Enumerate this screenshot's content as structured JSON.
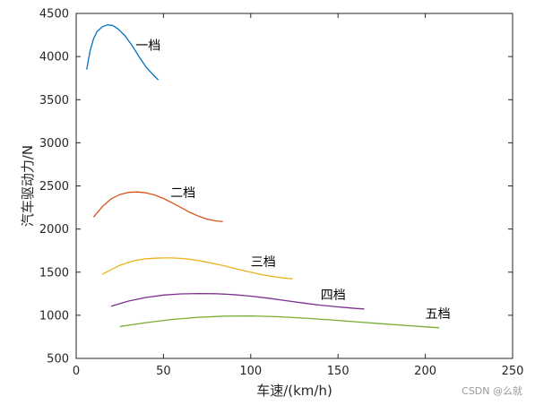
{
  "chart_data": {
    "type": "line",
    "title": "",
    "xlabel": "车速/(km/h)",
    "ylabel": "汽车驱动力/N",
    "xlim": [
      0,
      250
    ],
    "ylim": [
      500,
      4500
    ],
    "xticks": [
      0,
      50,
      100,
      150,
      200,
      250
    ],
    "yticks": [
      500,
      1000,
      1500,
      2000,
      2500,
      3000,
      3500,
      4000,
      4500
    ],
    "grid": false,
    "series": [
      {
        "name": "一档",
        "color": "#0072bd",
        "points": [
          [
            6,
            3850
          ],
          [
            8,
            4070
          ],
          [
            10,
            4210
          ],
          [
            12,
            4290
          ],
          [
            15,
            4345
          ],
          [
            18,
            4368
          ],
          [
            21,
            4360
          ],
          [
            24,
            4320
          ],
          [
            28,
            4240
          ],
          [
            32,
            4130
          ],
          [
            36,
            4000
          ],
          [
            40,
            3880
          ],
          [
            44,
            3790
          ],
          [
            47,
            3730
          ]
        ]
      },
      {
        "name": "二档",
        "color": "#d95319",
        "points": [
          [
            10,
            2140
          ],
          [
            15,
            2260
          ],
          [
            20,
            2350
          ],
          [
            25,
            2400
          ],
          [
            30,
            2425
          ],
          [
            35,
            2430
          ],
          [
            40,
            2420
          ],
          [
            45,
            2395
          ],
          [
            50,
            2355
          ],
          [
            55,
            2305
          ],
          [
            60,
            2250
          ],
          [
            65,
            2195
          ],
          [
            70,
            2150
          ],
          [
            75,
            2115
          ],
          [
            80,
            2095
          ],
          [
            84,
            2085
          ]
        ]
      },
      {
        "name": "三档",
        "color": "#edb120",
        "points": [
          [
            15,
            1475
          ],
          [
            20,
            1530
          ],
          [
            25,
            1580
          ],
          [
            30,
            1615
          ],
          [
            35,
            1640
          ],
          [
            40,
            1655
          ],
          [
            45,
            1662
          ],
          [
            50,
            1665
          ],
          [
            55,
            1665
          ],
          [
            60,
            1660
          ],
          [
            65,
            1650
          ],
          [
            70,
            1635
          ],
          [
            75,
            1615
          ],
          [
            80,
            1595
          ],
          [
            85,
            1572
          ],
          [
            90,
            1547
          ],
          [
            95,
            1522
          ],
          [
            100,
            1500
          ],
          [
            105,
            1477
          ],
          [
            110,
            1458
          ],
          [
            115,
            1442
          ],
          [
            120,
            1430
          ],
          [
            124,
            1423
          ]
        ]
      },
      {
        "name": "四档",
        "color": "#7e2f8e",
        "points": [
          [
            20,
            1105
          ],
          [
            30,
            1165
          ],
          [
            40,
            1207
          ],
          [
            50,
            1235
          ],
          [
            60,
            1248
          ],
          [
            70,
            1252
          ],
          [
            80,
            1250
          ],
          [
            90,
            1240
          ],
          [
            100,
            1222
          ],
          [
            110,
            1198
          ],
          [
            120,
            1170
          ],
          [
            130,
            1142
          ],
          [
            140,
            1117
          ],
          [
            150,
            1097
          ],
          [
            160,
            1080
          ],
          [
            165,
            1073
          ]
        ]
      },
      {
        "name": "五档",
        "color": "#77ac30",
        "points": [
          [
            25,
            870
          ],
          [
            40,
            915
          ],
          [
            55,
            952
          ],
          [
            70,
            977
          ],
          [
            85,
            990
          ],
          [
            100,
            992
          ],
          [
            115,
            984
          ],
          [
            130,
            968
          ],
          [
            145,
            948
          ],
          [
            160,
            925
          ],
          [
            175,
            902
          ],
          [
            190,
            880
          ],
          [
            200,
            866
          ],
          [
            208,
            855
          ]
        ]
      }
    ],
    "annotations": [
      {
        "text": "一档",
        "x": 34,
        "y": 4080
      },
      {
        "text": "二档",
        "x": 54,
        "y": 2370
      },
      {
        "text": "三档",
        "x": 100,
        "y": 1570
      },
      {
        "text": "四档",
        "x": 140,
        "y": 1185
      },
      {
        "text": "五档",
        "x": 200,
        "y": 970
      }
    ]
  },
  "watermark": "CSDN @么就"
}
